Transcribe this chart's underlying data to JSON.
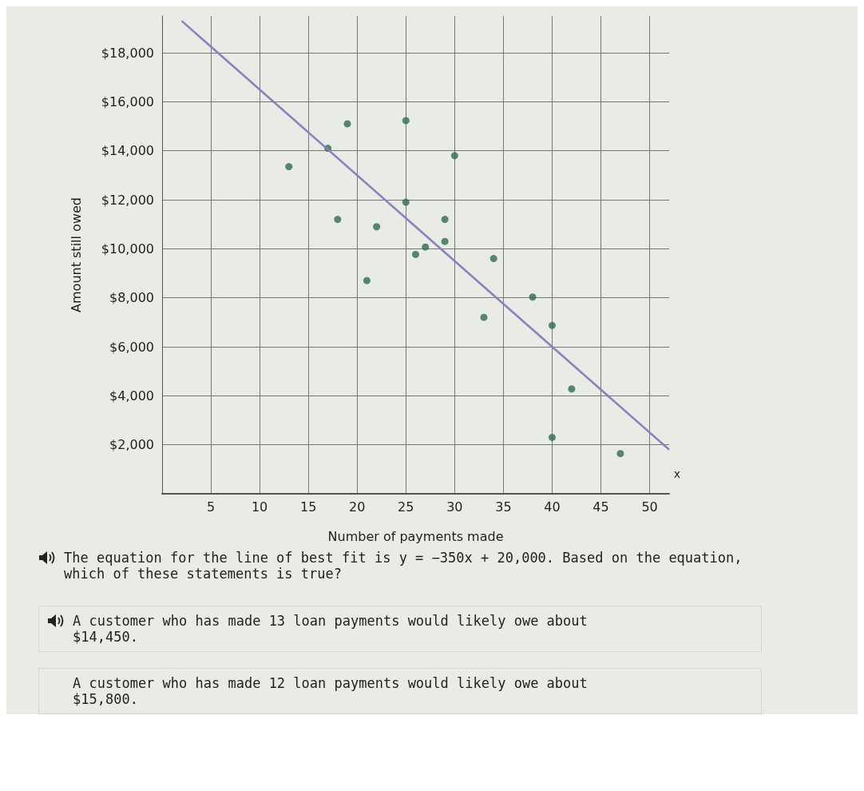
{
  "chart_data": {
    "type": "scatter",
    "xlabel": "Number of payments made",
    "ylabel": "Amount still owed",
    "xlim": [
      0,
      52
    ],
    "xticks": [
      5,
      10,
      15,
      20,
      25,
      30,
      35,
      40,
      45,
      50
    ],
    "ylim": [
      0,
      19500
    ],
    "yticks": [
      {
        "value": 2000,
        "label": "$2,000"
      },
      {
        "value": 4000,
        "label": "$4,000"
      },
      {
        "value": 6000,
        "label": "$6,000"
      },
      {
        "value": 8000,
        "label": "$8,000"
      },
      {
        "value": 10000,
        "label": "$10,000"
      },
      {
        "value": 12000,
        "label": "$12,000"
      },
      {
        "value": 14000,
        "label": "$14,000"
      },
      {
        "value": 16000,
        "label": "$16,000"
      },
      {
        "value": 18000,
        "label": "$18,000"
      }
    ],
    "grid": true,
    "marker": "circle",
    "series": [
      {
        "color": "#2e6b50",
        "x": [
          19,
          25,
          17,
          30,
          13,
          25,
          18,
          22,
          29,
          26,
          27,
          29,
          34,
          21,
          38,
          33,
          40,
          42,
          40,
          47
        ],
        "values": [
          15100,
          15230,
          14100,
          13800,
          13350,
          11900,
          11200,
          10900,
          11200,
          9770,
          10070,
          10300,
          9600,
          8700,
          8030,
          7200,
          6870,
          4280,
          2300,
          1640
        ]
      },
      {
        "type": "line",
        "color": "#8a7fc0",
        "marker": "none",
        "x": [
          2,
          52
        ],
        "values": [
          19300,
          1800
        ]
      }
    ],
    "annotations": [
      "x",
      "The equation for the line of best fit is y = −350x + 20,000. Based on the equation, which of these statements is true?",
      "A customer who has made 13 loan payments would likely owe about $14,450.",
      "A customer who has made 12 loan payments would likely owe about $15,800."
    ]
  }
}
